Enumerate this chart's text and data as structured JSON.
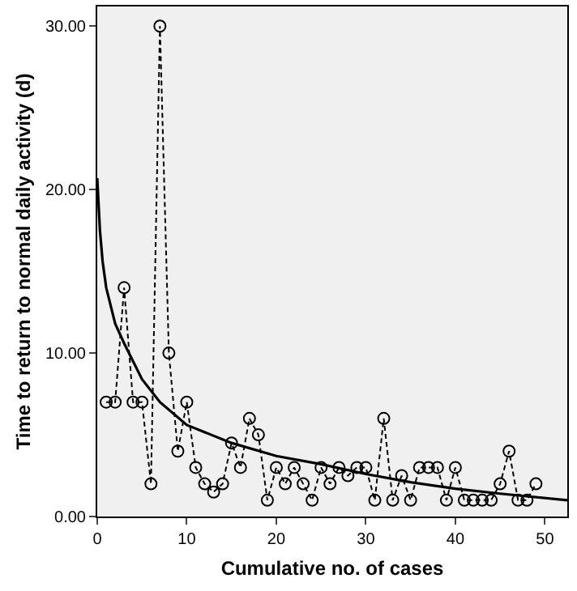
{
  "chart_data": {
    "type": "line",
    "xlabel": "Cumulative no. of cases",
    "ylabel": "Time to return to normal daily activity (d)",
    "xlim": [
      0,
      52.5
    ],
    "xticks": [
      0,
      10,
      20,
      30,
      40,
      50
    ],
    "ylim": [
      0,
      31.2
    ],
    "yticks": [
      {
        "value": 0,
        "label": "0.00"
      },
      {
        "value": 10,
        "label": "10.00"
      },
      {
        "value": 20,
        "label": "20.00"
      },
      {
        "value": 30,
        "label": "30.00"
      }
    ],
    "grid": false,
    "legend": false,
    "series": [
      {
        "type": "line",
        "color": "#000000",
        "marker": "circle",
        "line_style": "dashed",
        "x": [
          1,
          2,
          3,
          4,
          5,
          6,
          7,
          8,
          9,
          10,
          11,
          12,
          13,
          14,
          15,
          16,
          17,
          18,
          19,
          20,
          21,
          22,
          23,
          24,
          25,
          26,
          27,
          28,
          29,
          30,
          31,
          32,
          33,
          34,
          35,
          36,
          37,
          38,
          39,
          40,
          41,
          42,
          43,
          44,
          45,
          46,
          47,
          48,
          49
        ],
        "values": [
          7,
          7,
          14,
          7,
          7,
          2,
          30,
          10,
          4,
          7,
          3,
          2,
          1.5,
          2,
          4.5,
          3,
          6,
          5,
          1,
          3,
          2,
          3,
          2,
          1,
          3,
          2,
          3,
          2.5,
          3,
          3,
          1,
          6,
          1,
          2.5,
          1,
          3,
          3,
          3,
          1,
          3,
          1,
          1,
          1,
          1,
          2,
          4,
          1,
          1,
          2
        ]
      },
      {
        "type": "line",
        "color": "#000000",
        "marker": "none",
        "line_style": "solid",
        "x": [
          0,
          0.3,
          0.6,
          1,
          2,
          3,
          5,
          7,
          10,
          15,
          20,
          25,
          30,
          35,
          40,
          45,
          52.5
        ],
        "values": [
          20.7,
          17.5,
          15.6,
          14,
          11.8,
          10.6,
          8.4,
          7,
          5.6,
          4.5,
          3.7,
          3.2,
          2.6,
          2.1,
          1.7,
          1.4,
          1
        ]
      }
    ]
  }
}
